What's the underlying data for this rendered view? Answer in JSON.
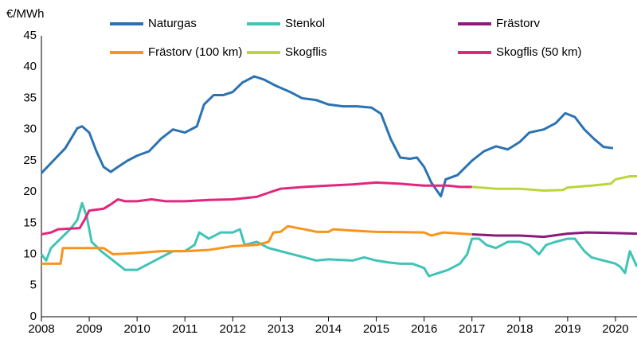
{
  "chart_data": {
    "type": "line",
    "y_label": "€/MWh",
    "xlim": [
      2008,
      2020.45
    ],
    "xticks": [
      2008,
      2009,
      2010,
      2011,
      2012,
      2013,
      2014,
      2015,
      2016,
      2017,
      2018,
      2019,
      2020
    ],
    "ylim": [
      0,
      45
    ],
    "yticks": [
      0,
      5,
      10,
      15,
      20,
      25,
      30,
      35,
      40,
      45
    ],
    "grid": false,
    "legend": "top",
    "series": [
      {
        "name": "Naturgas",
        "color": "#2b72b3",
        "x": [
          2008,
          2008.25,
          2008.5,
          2008.75,
          2008.85,
          2009,
          2009.15,
          2009.3,
          2009.45,
          2009.6,
          2009.8,
          2010,
          2010.25,
          2010.5,
          2010.75,
          2011,
          2011.25,
          2011.4,
          2011.6,
          2011.8,
          2012,
          2012.2,
          2012.45,
          2012.65,
          2012.9,
          2013.2,
          2013.45,
          2013.75,
          2014,
          2014.3,
          2014.6,
          2014.9,
          2015.1,
          2015.3,
          2015.5,
          2015.7,
          2015.85,
          2016,
          2016.15,
          2016.35,
          2016.45,
          2016.7,
          2017,
          2017.25,
          2017.5,
          2017.75,
          2018,
          2018.2,
          2018.5,
          2018.75,
          2018.95,
          2019.15,
          2019.35,
          2019.55,
          2019.75,
          2019.95
        ],
        "values": [
          23,
          25,
          27,
          30.2,
          30.5,
          29.5,
          26.5,
          24,
          23.2,
          24,
          25,
          25.8,
          26.5,
          28.5,
          30,
          29.5,
          30.5,
          34,
          35.5,
          35.5,
          36,
          37.5,
          38.5,
          38,
          37,
          36,
          35,
          34.7,
          34,
          33.7,
          33.7,
          33.5,
          32.5,
          28.5,
          25.5,
          25.3,
          25.5,
          24,
          21.5,
          19.3,
          22,
          22.7,
          25,
          26.5,
          27.3,
          26.8,
          28,
          29.5,
          30,
          31,
          32.6,
          32,
          30,
          28.5,
          27.2,
          27
        ]
      },
      {
        "name": "Stenkol",
        "color": "#3fc4b6",
        "x": [
          2008,
          2008.1,
          2008.2,
          2008.4,
          2008.6,
          2008.75,
          2008.85,
          2008.95,
          2009.05,
          2009.25,
          2009.5,
          2009.75,
          2010,
          2010.25,
          2010.5,
          2010.75,
          2011,
          2011.2,
          2011.3,
          2011.5,
          2011.75,
          2012,
          2012.15,
          2012.25,
          2012.5,
          2012.75,
          2013,
          2013.25,
          2013.5,
          2013.75,
          2014,
          2014.5,
          2014.75,
          2015,
          2015.25,
          2015.5,
          2015.75,
          2016,
          2016.1,
          2016.3,
          2016.5,
          2016.75,
          2016.9,
          2017,
          2017.15,
          2017.3,
          2017.5,
          2017.75,
          2018,
          2018.2,
          2018.4,
          2018.55,
          2018.75,
          2019,
          2019.15,
          2019.35,
          2019.5,
          2019.75,
          2020,
          2020.1,
          2020.2,
          2020.3,
          2020.45
        ],
        "values": [
          10,
          9,
          11,
          12.5,
          14,
          15.5,
          18.2,
          16,
          12,
          10.5,
          9,
          7.5,
          7.5,
          8.5,
          9.5,
          10.5,
          10.5,
          11.5,
          13.5,
          12.5,
          13.5,
          13.5,
          14,
          11.5,
          12,
          11,
          10.5,
          10,
          9.5,
          9,
          9.2,
          9,
          9.5,
          9,
          8.7,
          8.5,
          8.5,
          7.8,
          6.5,
          7,
          7.5,
          8.5,
          10,
          12.5,
          12.5,
          11.5,
          11,
          12,
          12,
          11.5,
          10,
          11.5,
          12,
          12.5,
          12.5,
          10.5,
          9.5,
          9,
          8.5,
          8,
          7,
          10.5,
          8
        ]
      },
      {
        "name": "Frästorv",
        "color": "#8c1a7c",
        "x": [
          2017,
          2017.5,
          2018,
          2018.5,
          2019,
          2019.4,
          2020,
          2020.45
        ],
        "values": [
          13.2,
          13,
          13,
          12.8,
          13.3,
          13.5,
          13.4,
          13.3
        ]
      },
      {
        "name": "Frästorv (100 km)",
        "color": "#f7941d",
        "x": [
          2008,
          2008.4,
          2008.45,
          2009,
          2009.3,
          2009.5,
          2010,
          2010.5,
          2011,
          2011.5,
          2012,
          2012.5,
          2012.75,
          2012.85,
          2013,
          2013.15,
          2013.5,
          2013.75,
          2014,
          2014.1,
          2014.5,
          2015,
          2016,
          2016.15,
          2016.4,
          2017
        ],
        "values": [
          8.5,
          8.5,
          11,
          11,
          11,
          10,
          10.2,
          10.5,
          10.5,
          10.7,
          11.3,
          11.5,
          12,
          13.5,
          13.6,
          14.5,
          14,
          13.6,
          13.6,
          14,
          13.8,
          13.6,
          13.5,
          13,
          13.5,
          13.2
        ]
      },
      {
        "name": "Skogflis",
        "color": "#bcd53c",
        "x": [
          2017,
          2017.5,
          2018,
          2018.5,
          2018.9,
          2019,
          2019.5,
          2019.9,
          2020,
          2020.3,
          2020.45
        ],
        "values": [
          20.8,
          20.5,
          20.5,
          20.2,
          20.3,
          20.7,
          21,
          21.3,
          22,
          22.5,
          22.5
        ]
      },
      {
        "name": "Skogflis (50 km)",
        "color": "#e2267b",
        "x": [
          2008,
          2008.2,
          2008.35,
          2008.8,
          2008.9,
          2009,
          2009.3,
          2009.45,
          2009.6,
          2009.75,
          2010,
          2010.3,
          2010.6,
          2011,
          2011.5,
          2012,
          2012.5,
          2012.8,
          2013,
          2013.5,
          2014,
          2014.5,
          2015,
          2015.5,
          2016,
          2016.5,
          2016.75,
          2017
        ],
        "values": [
          13.2,
          13.5,
          14,
          14.2,
          15.5,
          17,
          17.3,
          18,
          18.8,
          18.5,
          18.5,
          18.8,
          18.5,
          18.5,
          18.7,
          18.8,
          19.2,
          20,
          20.5,
          20.8,
          21,
          21.2,
          21.5,
          21.3,
          21,
          21,
          20.8,
          20.8
        ]
      }
    ]
  }
}
